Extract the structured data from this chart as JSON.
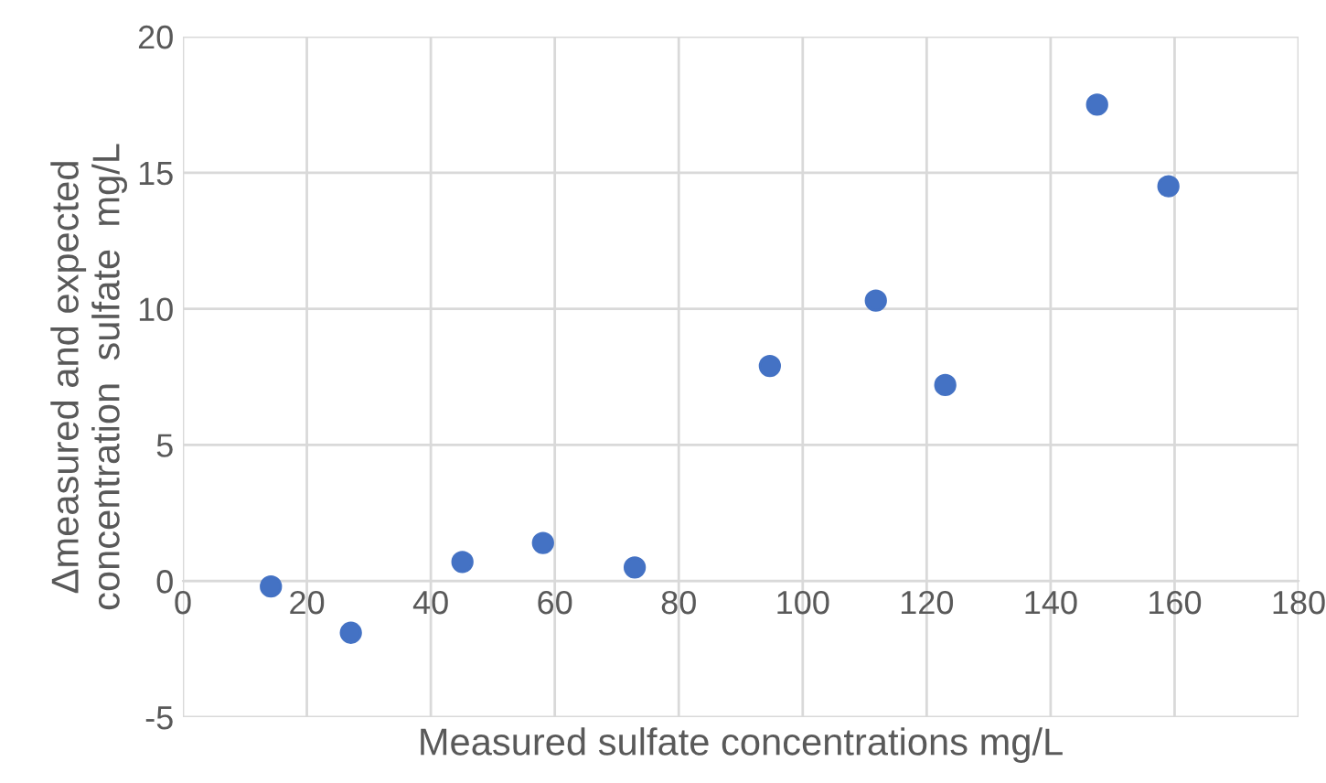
{
  "chart_data": {
    "type": "scatter",
    "xlabel": "Measured sulfate concentrations mg/L",
    "ylabel": "Δmeasured and expected\nconcentration  sulfate  mg/L",
    "x": [
      14.2,
      27.1,
      45.1,
      58.1,
      72.9,
      94.7,
      111.8,
      123.0,
      147.5,
      159.0
    ],
    "series": [
      {
        "color": "#4472c4",
        "values": [
          -0.2,
          -1.9,
          0.7,
          1.4,
          0.5,
          7.9,
          10.3,
          7.2,
          17.5,
          14.5
        ]
      }
    ],
    "xlim": [
      0,
      180
    ],
    "xticks": [
      0,
      20,
      40,
      60,
      80,
      100,
      120,
      140,
      160,
      180
    ],
    "ylim": [
      -5,
      20
    ],
    "yticks": [
      -5,
      0,
      5,
      10,
      15,
      20
    ],
    "grid": true,
    "marker": "circle"
  }
}
